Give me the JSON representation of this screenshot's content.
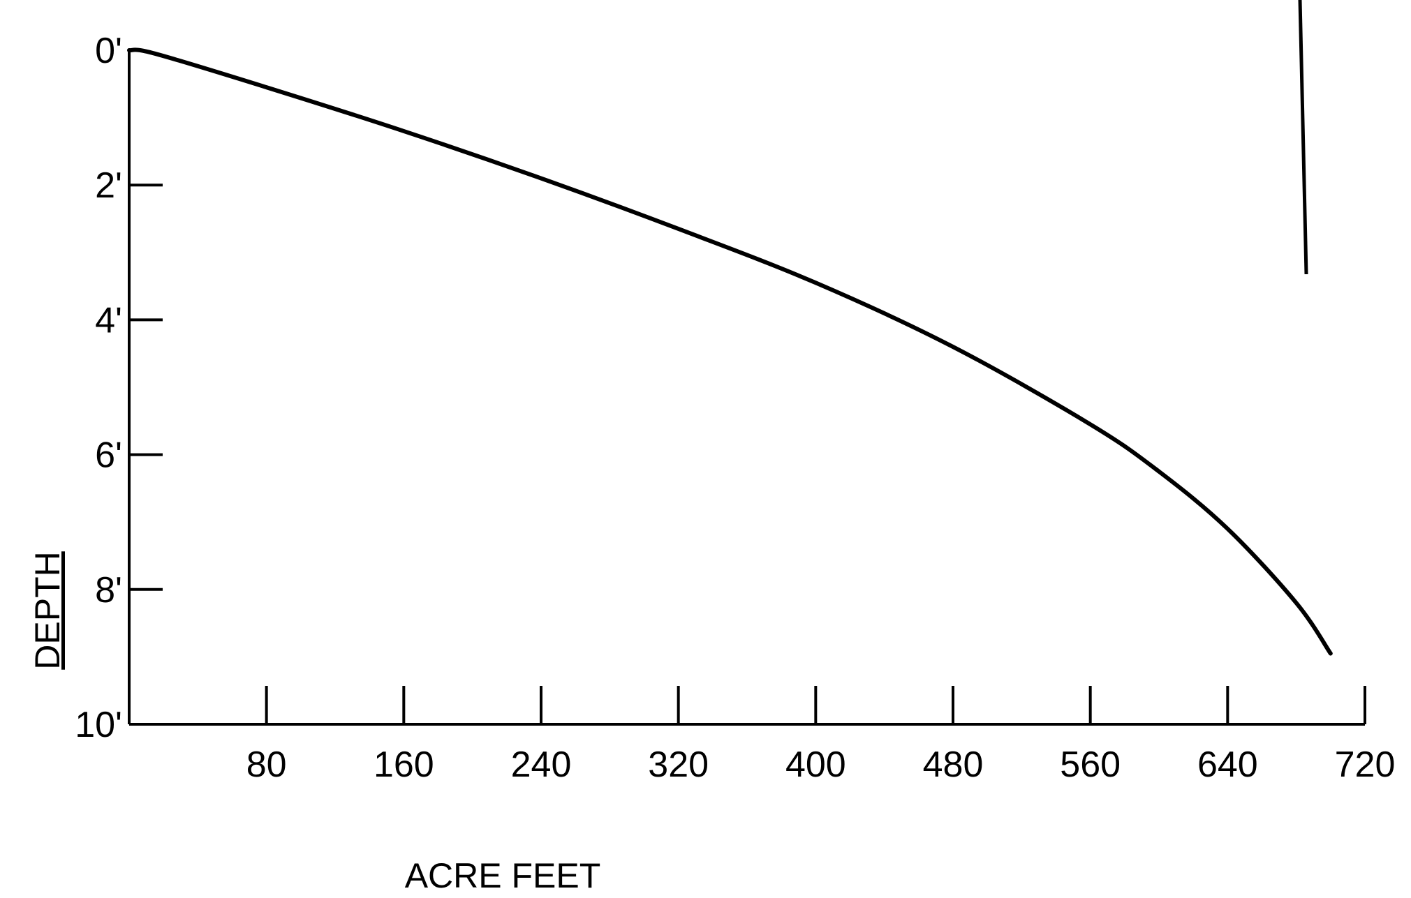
{
  "chart_data": {
    "type": "line",
    "title": "",
    "xlabel": "ACRE FEET",
    "ylabel": "DEPTH",
    "xlim": [
      0,
      720
    ],
    "ylim": [
      10,
      0
    ],
    "y_inverted": true,
    "grid": false,
    "x_ticks": [
      {
        "value": 80,
        "label": "80"
      },
      {
        "value": 160,
        "label": "160"
      },
      {
        "value": 240,
        "label": "240"
      },
      {
        "value": 320,
        "label": "320"
      },
      {
        "value": 400,
        "label": "400"
      },
      {
        "value": 480,
        "label": "480"
      },
      {
        "value": 560,
        "label": "560"
      },
      {
        "value": 640,
        "label": "640"
      },
      {
        "value": 720,
        "label": "720"
      }
    ],
    "y_ticks": [
      {
        "value": 0,
        "label": "0'"
      },
      {
        "value": 2,
        "label": "2'"
      },
      {
        "value": 4,
        "label": "4'"
      },
      {
        "value": 6,
        "label": "6'"
      },
      {
        "value": 8,
        "label": "8'"
      },
      {
        "value": 10,
        "label": "10'"
      }
    ],
    "series": [
      {
        "x": [
          0,
          15,
          80,
          160,
          240,
          320,
          400,
          480,
          560,
          600,
          640,
          680,
          700
        ],
        "y": [
          0,
          0.05,
          0.55,
          1.2,
          1.9,
          2.65,
          3.45,
          4.4,
          5.55,
          6.25,
          7.1,
          8.2,
          8.95
        ]
      }
    ],
    "color": "#000000"
  }
}
